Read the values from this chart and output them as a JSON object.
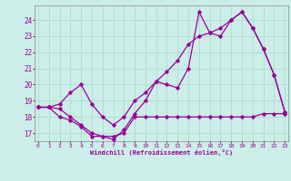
{
  "bg_color": "#cceee8",
  "line_color": "#990099",
  "grid_color": "#aaddcc",
  "ylabel_ticks": [
    17,
    18,
    19,
    20,
    21,
    22,
    23,
    24
  ],
  "xlabel_ticks": [
    0,
    1,
    2,
    3,
    4,
    5,
    6,
    7,
    8,
    9,
    10,
    11,
    12,
    13,
    14,
    15,
    16,
    17,
    18,
    19,
    20,
    21,
    22,
    23
  ],
  "xlabel_label": "Windchill (Refroidissement éolien,°C)",
  "ylim": [
    16.5,
    24.9
  ],
  "xlim": [
    -0.3,
    23.3
  ],
  "curve1_x": [
    0,
    1,
    2,
    3,
    4,
    5,
    6,
    7,
    8,
    9,
    10,
    11,
    12,
    13,
    14,
    15,
    16,
    17,
    18,
    19,
    20,
    21,
    22,
    23
  ],
  "curve1_y": [
    18.6,
    18.6,
    18.0,
    17.8,
    17.4,
    16.8,
    16.8,
    16.8,
    17.0,
    18.0,
    18.0,
    18.0,
    18.0,
    18.0,
    18.0,
    18.0,
    18.0,
    18.0,
    18.0,
    18.0,
    18.0,
    18.2,
    18.2,
    18.2
  ],
  "curve2_x": [
    0,
    1,
    2,
    3,
    4,
    5,
    6,
    7,
    8,
    9,
    10,
    11,
    12,
    13,
    14,
    15,
    16,
    17,
    18,
    19,
    20,
    21,
    22,
    23
  ],
  "curve2_y": [
    18.6,
    18.6,
    18.8,
    19.5,
    20.0,
    18.8,
    18.0,
    17.5,
    18.0,
    19.0,
    19.5,
    20.2,
    20.8,
    21.5,
    22.5,
    23.0,
    23.2,
    23.5,
    24.0,
    24.5,
    23.5,
    22.2,
    20.6,
    18.3
  ],
  "curve3_x": [
    0,
    1,
    2,
    3,
    4,
    5,
    6,
    7,
    8,
    9,
    10,
    11,
    12,
    13,
    14,
    15,
    16,
    17,
    18,
    19,
    20,
    21,
    22,
    23
  ],
  "curve3_y": [
    18.6,
    18.6,
    18.5,
    18.0,
    17.5,
    17.0,
    16.8,
    16.6,
    17.2,
    18.2,
    19.0,
    20.2,
    20.0,
    19.8,
    21.0,
    24.5,
    23.2,
    23.0,
    24.0,
    24.5,
    23.5,
    22.2,
    20.6,
    18.3
  ]
}
